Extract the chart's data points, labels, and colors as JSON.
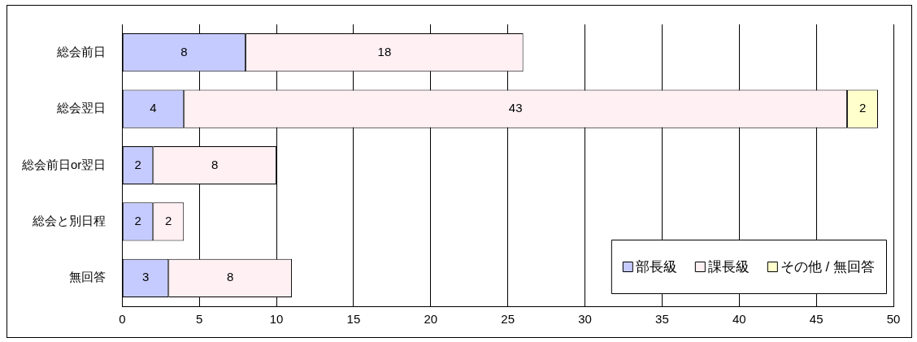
{
  "chart_data": {
    "type": "bar",
    "orientation": "horizontal",
    "stacked": true,
    "categories": [
      "総会前日",
      "総会翌日",
      "総会前日or翌日",
      "総会と別日程",
      "無回答"
    ],
    "series": [
      {
        "name": "部長級",
        "color": "#c6cbff",
        "values": [
          8,
          4,
          2,
          2,
          3
        ]
      },
      {
        "name": "課長級",
        "color": "#fff0f4",
        "values": [
          18,
          43,
          8,
          2,
          8
        ]
      },
      {
        "name": "その他 / 無回答",
        "color": "#ffffcc",
        "values": [
          null,
          2,
          null,
          null,
          null
        ]
      }
    ],
    "xlim": [
      0,
      50
    ],
    "xticks": [
      0,
      5,
      10,
      15,
      20,
      25,
      30,
      35,
      40,
      45,
      50
    ],
    "grid": "x",
    "legend": "bottom right",
    "data_labels": true
  }
}
